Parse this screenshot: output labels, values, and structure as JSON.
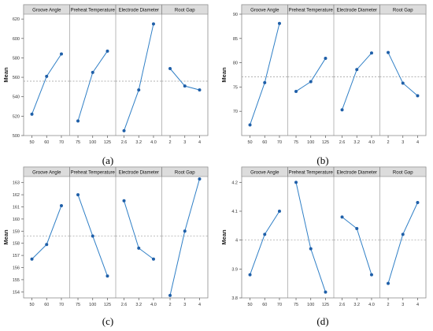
{
  "colors": {
    "line": "#2f7fc6",
    "marker": "#1f5fa8",
    "mean_ref": "#9a9a9a",
    "panel_border": "#8c8c8c",
    "header_fill": "#dcdcdc"
  },
  "chart_data": [
    {
      "type": "line",
      "caption": "(a)",
      "ylabel": "Mean",
      "ylim": [
        500,
        625
      ],
      "yticks": [
        500,
        520,
        540,
        560,
        580,
        600,
        620
      ],
      "grand_mean": 556,
      "grid": false,
      "factors": [
        {
          "name": "Groove Angle",
          "levels": [
            "50",
            "60",
            "70"
          ],
          "values": [
            522,
            561,
            584
          ]
        },
        {
          "name": "Preheat Temperature",
          "levels": [
            "75",
            "100",
            "125"
          ],
          "values": [
            515,
            565,
            587
          ]
        },
        {
          "name": "Electrode Diameter",
          "levels": [
            "2.6",
            "3.2",
            "4.0"
          ],
          "values": [
            505,
            547,
            615
          ]
        },
        {
          "name": "Root Gap",
          "levels": [
            "2",
            "3",
            "4"
          ],
          "values": [
            569,
            551,
            547
          ]
        }
      ]
    },
    {
      "type": "line",
      "caption": "(b)",
      "ylabel": "Mean",
      "ylim": [
        65,
        90
      ],
      "yticks": [
        70,
        75,
        80,
        85,
        90
      ],
      "grand_mean": 77.1,
      "grid": false,
      "factors": [
        {
          "name": "Groove Angle",
          "levels": [
            "50",
            "60",
            "70"
          ],
          "values": [
            67.2,
            75.9,
            88.1
          ]
        },
        {
          "name": "Preheat Temperature",
          "levels": [
            "75",
            "100",
            "125"
          ],
          "values": [
            74.1,
            76.1,
            80.9
          ]
        },
        {
          "name": "Electrode Diameter",
          "levels": [
            "2.6",
            "3.2",
            "4.0"
          ],
          "values": [
            70.3,
            78.6,
            82.0
          ]
        },
        {
          "name": "Root Gap",
          "levels": [
            "2",
            "3",
            "4"
          ],
          "values": [
            82.1,
            75.8,
            73.2
          ]
        }
      ]
    },
    {
      "type": "line",
      "caption": "(c)",
      "ylabel": "Mean",
      "ylim": [
        153.5,
        163.5
      ],
      "yticks": [
        154,
        155,
        156,
        157,
        158,
        159,
        160,
        161,
        162,
        163
      ],
      "grand_mean": 158.6,
      "grid": false,
      "factors": [
        {
          "name": "Groove Angle",
          "levels": [
            "50",
            "60",
            "70"
          ],
          "values": [
            156.7,
            157.9,
            161.1
          ]
        },
        {
          "name": "Preheat Temperature",
          "levels": [
            "75",
            "100",
            "125"
          ],
          "values": [
            162.0,
            158.6,
            155.3
          ]
        },
        {
          "name": "Electrode Diameter",
          "levels": [
            "2.6",
            "3.2",
            "4.0"
          ],
          "values": [
            161.5,
            157.6,
            156.7
          ]
        },
        {
          "name": "Root Gap",
          "levels": [
            "2",
            "3",
            "4"
          ],
          "values": [
            153.7,
            159.0,
            163.3
          ]
        }
      ]
    },
    {
      "type": "line",
      "caption": "(d)",
      "ylabel": "Mean",
      "ylim": [
        3.8,
        4.22
      ],
      "yticks": [
        3.8,
        3.9,
        4.0,
        4.1,
        4.2
      ],
      "grand_mean": 4.0,
      "grid": false,
      "factors": [
        {
          "name": "Groove Angle",
          "levels": [
            "50",
            "60",
            "70"
          ],
          "values": [
            3.88,
            4.02,
            4.1
          ]
        },
        {
          "name": "Preheat Temperature",
          "levels": [
            "75",
            "100",
            "125"
          ],
          "values": [
            4.2,
            3.97,
            3.82
          ]
        },
        {
          "name": "Electrode Diameter",
          "levels": [
            "2.6",
            "3.2",
            "4.0"
          ],
          "values": [
            4.08,
            4.04,
            3.88
          ]
        },
        {
          "name": "Root Gap",
          "levels": [
            "2",
            "3",
            "4"
          ],
          "values": [
            3.85,
            4.02,
            4.13
          ]
        }
      ]
    }
  ]
}
